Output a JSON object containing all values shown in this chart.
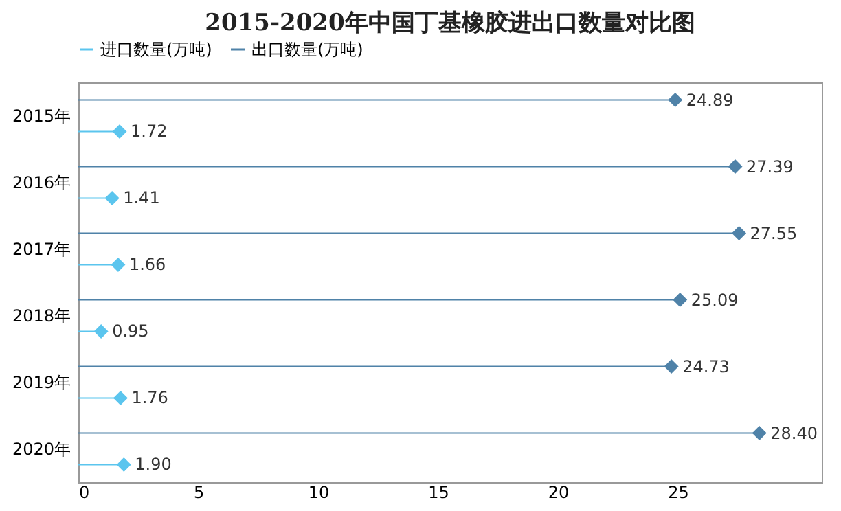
{
  "chart_data": {
    "type": "lollipop",
    "title": "2015-2020年中国丁基橡胶进出口数量对比图",
    "orientation": "horizontal",
    "categories": [
      "2015年",
      "2016年",
      "2017年",
      "2018年",
      "2019年",
      "2020年"
    ],
    "series": [
      {
        "name": "进口数量(万吨)",
        "color": "#5bc5ee",
        "values": [
          1.72,
          1.41,
          1.66,
          0.95,
          1.76,
          1.9
        ],
        "value_labels": [
          "1.72",
          "1.41",
          "1.66",
          "0.95",
          "1.76",
          "1.90"
        ]
      },
      {
        "name": "出口数量(万吨)",
        "color": "#4f82a8",
        "values": [
          24.89,
          27.39,
          27.55,
          25.09,
          24.73,
          28.4
        ],
        "value_labels": [
          "24.89",
          "27.39",
          "27.55",
          "25.09",
          "24.73",
          "28.40"
        ]
      }
    ],
    "xlim": [
      0,
      31
    ],
    "xticks": [
      0,
      5,
      10,
      15,
      20,
      25
    ],
    "marker": "diamond",
    "legend": "top",
    "grid": false
  }
}
